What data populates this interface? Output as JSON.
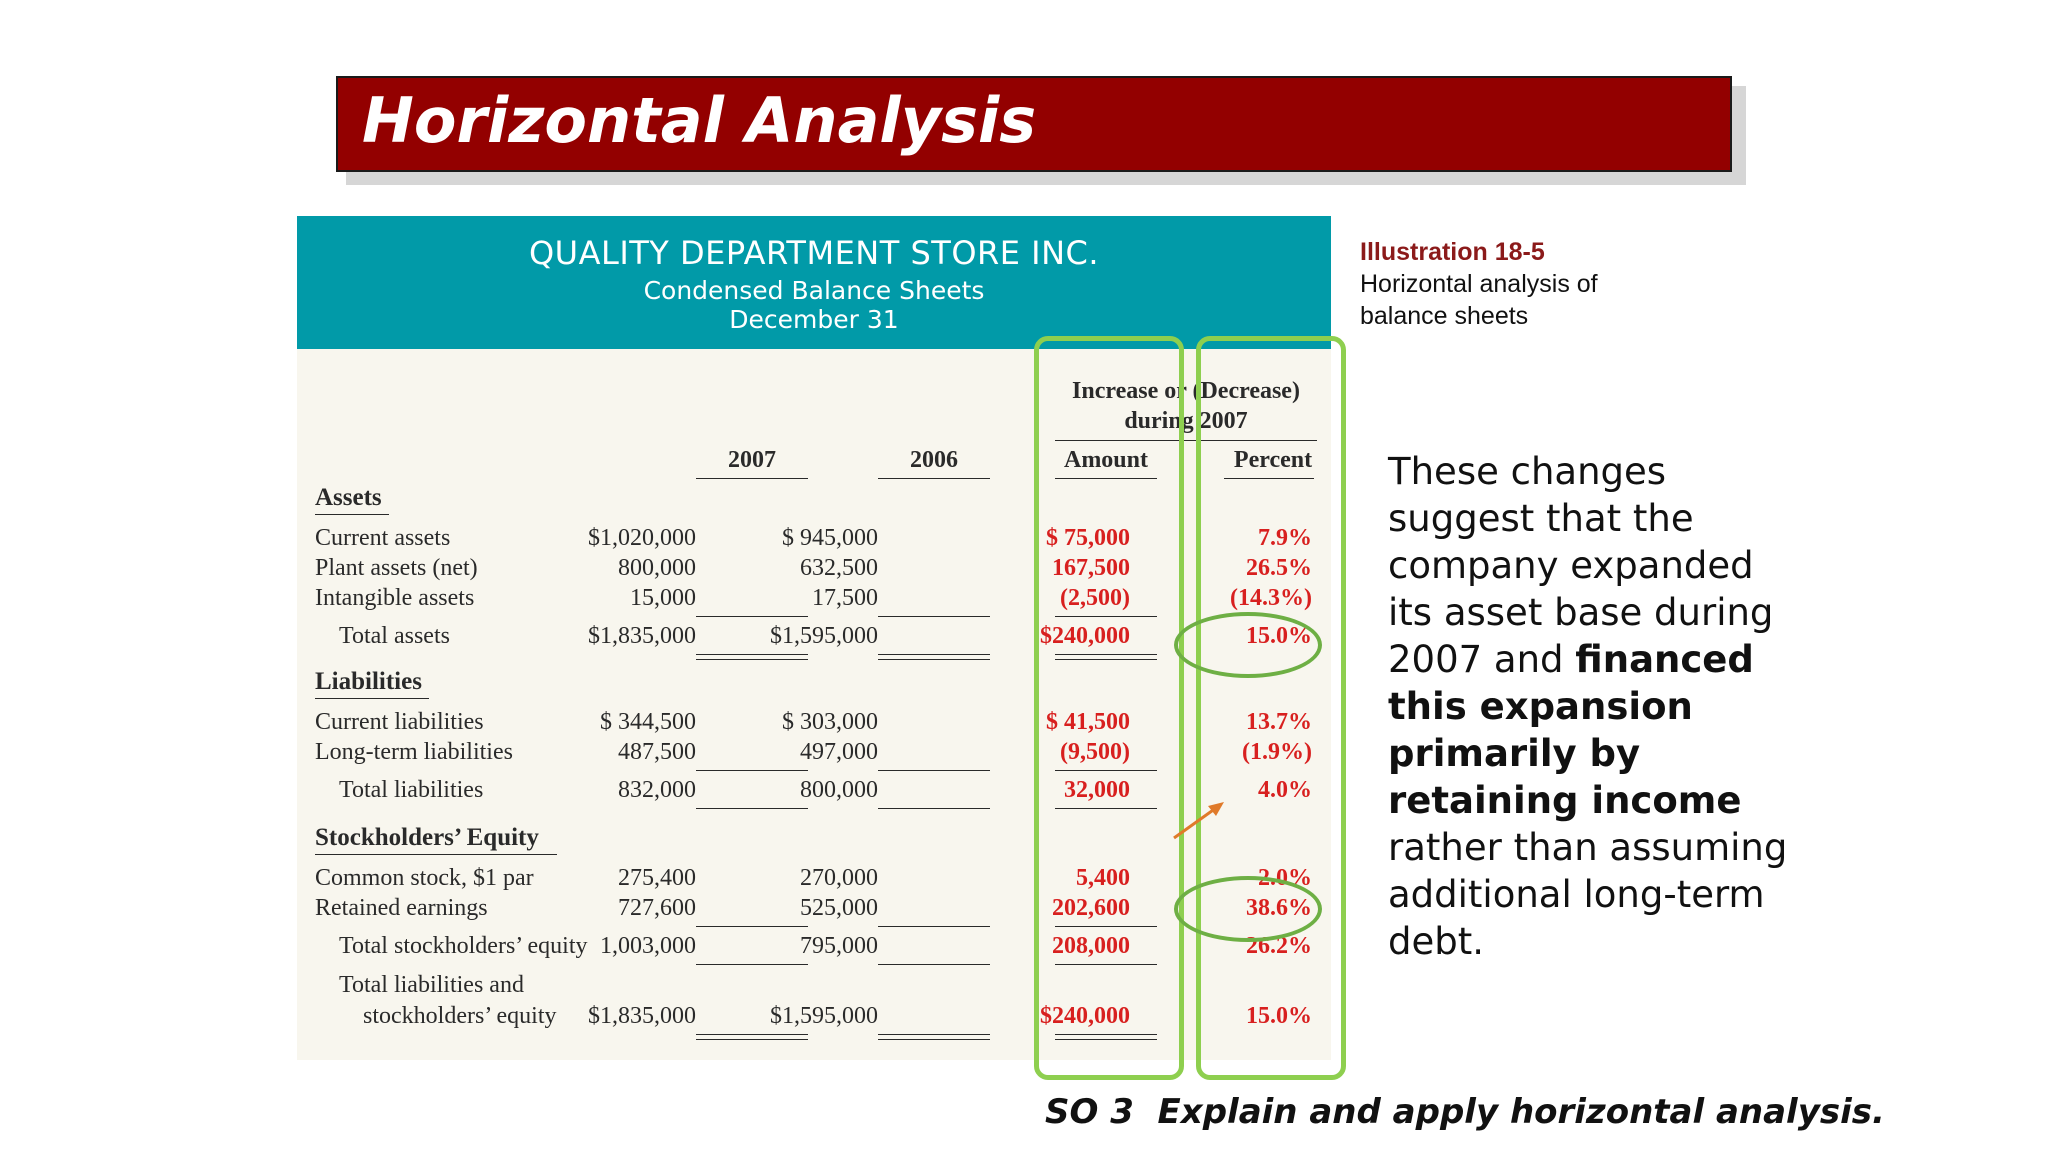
{
  "slide": {
    "title": "Horizontal Analysis",
    "illustration_number": "Illustration 18-5",
    "illustration_caption": "Horizontal analysis of balance sheets",
    "note": {
      "part1": "These changes suggest that the company expanded its asset base during 2007 and ",
      "bold": "financed this expansion primarily by retaining income",
      "part2": " rather than assuming additional long-term debt."
    },
    "footer": "SO 3  Explain and apply horizontal analysis."
  },
  "statement": {
    "company": "QUALITY DEPARTMENT STORE INC.",
    "subtitle1": "Condensed Balance Sheets",
    "subtitle2": "December 31",
    "change_header_line1": "Increase or (Decrease)",
    "change_header_line2": "during 2007",
    "columns": [
      "2007",
      "2006",
      "Amount",
      "Percent"
    ],
    "sections": {
      "assets": "Assets",
      "liabilities": "Liabilities",
      "equity": "Stockholders’ Equity"
    },
    "rows": [
      {
        "label": "Current assets",
        "y2007": "$1,020,000",
        "y2006": "$   945,000",
        "amount": "$ 75,000",
        "percent": "7.9%"
      },
      {
        "label": "Plant assets (net)",
        "y2007": "800,000",
        "y2006": "632,500",
        "amount": "167,500",
        "percent": "26.5%"
      },
      {
        "label": "Intangible assets",
        "y2007": "15,000",
        "y2006": "17,500",
        "amount": "(2,500)",
        "percent": "(14.3%)"
      },
      {
        "label": "Total assets",
        "y2007": "$1,835,000",
        "y2006": "$1,595,000",
        "amount": "$240,000",
        "percent": "15.0%"
      },
      {
        "label": "Current liabilities",
        "y2007": "$   344,500",
        "y2006": "$   303,000",
        "amount": "$ 41,500",
        "percent": "13.7%"
      },
      {
        "label": "Long-term liabilities",
        "y2007": "487,500",
        "y2006": "497,000",
        "amount": "(9,500)",
        "percent": "(1.9%)"
      },
      {
        "label": "Total liabilities",
        "y2007": "832,000",
        "y2006": "800,000",
        "amount": "32,000",
        "percent": "4.0%"
      },
      {
        "label": "Common stock, $1 par",
        "y2007": "275,400",
        "y2006": "270,000",
        "amount": "5,400",
        "percent": "2.0%"
      },
      {
        "label": "Retained earnings",
        "y2007": "727,600",
        "y2006": "525,000",
        "amount": "202,600",
        "percent": "38.6%"
      },
      {
        "label": "Total stockholders’ equity",
        "y2007": "1,003,000",
        "y2006": "795,000",
        "amount": "208,000",
        "percent": "26.2%"
      },
      {
        "label1": "Total liabilities and",
        "label2": "stockholders’ equity",
        "y2007": "$1,835,000",
        "y2006": "$1,595,000",
        "amount": "$240,000",
        "percent": "15.0%"
      }
    ]
  }
}
